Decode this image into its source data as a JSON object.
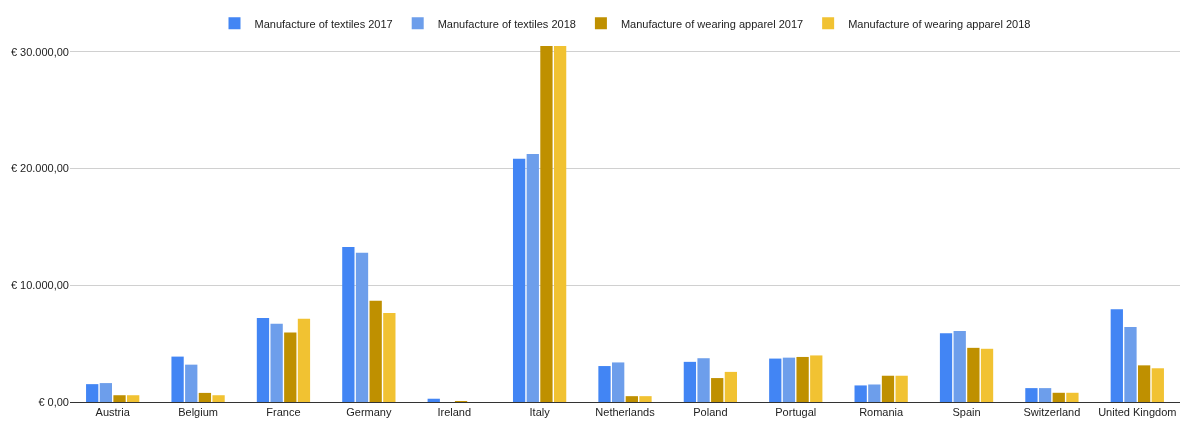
{
  "chart_data": {
    "type": "bar",
    "categories": [
      "Austria",
      "Belgium",
      "France",
      "Germany",
      "Ireland",
      "Italy",
      "Netherlands",
      "Poland",
      "Portugal",
      "Romania",
      "Spain",
      "Switzerland",
      "United Kingdom"
    ],
    "series": [
      {
        "name": "Manufacture of textiles 2017",
        "color": "#4285f4",
        "values": [
          1530,
          3890,
          7200,
          13280,
          280,
          20830,
          3080,
          3440,
          3720,
          1420,
          5890,
          1190,
          7950
        ]
      },
      {
        "name": "Manufacture of textiles 2018",
        "color": "#6d9eeb",
        "values": [
          1620,
          3200,
          6700,
          12780,
          null,
          21250,
          3390,
          3750,
          3800,
          1500,
          6080,
          1190,
          6420
        ]
      },
      {
        "name": "Manufacture of wearing apparel 2017",
        "color": "#bf9000",
        "values": [
          580,
          780,
          5950,
          8670,
          60,
          30500,
          500,
          2050,
          3860,
          2250,
          4640,
          790,
          3140
        ]
      },
      {
        "name": "Manufacture of wearing apparel 2018",
        "color": "#f1c232",
        "values": [
          580,
          580,
          7140,
          7620,
          null,
          30500,
          500,
          2580,
          3990,
          2250,
          4560,
          790,
          2890
        ]
      }
    ],
    "ylim": [
      0,
      30500
    ],
    "yticks": [
      {
        "value": 0,
        "label": "€ 0,00"
      },
      {
        "value": 10000,
        "label": "€ 10.000,00"
      },
      {
        "value": 20000,
        "label": "€ 20.000,00"
      },
      {
        "value": 30000,
        "label": "€ 30.000,00"
      }
    ],
    "grid": "y",
    "legend": "top"
  }
}
